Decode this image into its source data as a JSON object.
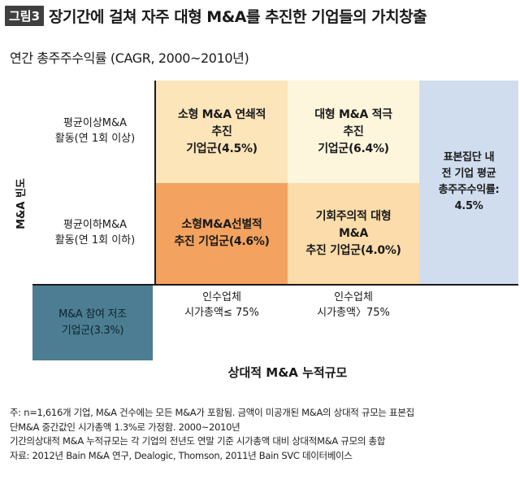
{
  "figure": {
    "badge": "그림3",
    "title": "장기간에 걸쳐 자주 대형 M&A를 추진한 기업들의 가치창출",
    "subtitle": "연간 총주주수익률 (CAGR, 2000~2010년)"
  },
  "axes": {
    "y_label": "M&A 빈도",
    "x_label": "상대적 M&A 누적규모"
  },
  "rows": {
    "top": [
      "평균이상M&A",
      "활동(연 1회 이상)"
    ],
    "bottom": [
      "평균이하M&A",
      "활동(연 1회 이하)"
    ]
  },
  "columns": {
    "left": [
      "인수업체",
      "시가총액≤ 75%"
    ],
    "right": [
      "인수업체",
      "시가총액〉75%"
    ]
  },
  "cells": {
    "small_frequent": [
      "소형 M&A 연쇄적",
      "추진",
      "기업군(4.5%)"
    ],
    "large_frequent": [
      "대형 M&A 적극",
      "추진",
      "기업군(6.4%)"
    ],
    "small_selective": [
      "소형M&A선별적",
      "추진 기업군(4.6%)"
    ],
    "large_opportunistic": [
      "기회주의적 대형",
      "M&A",
      "추진 기업군(4.0%)"
    ],
    "sample": [
      "표본집단 내",
      "전 기업 평균",
      "총주주수익률:",
      "4.5%"
    ],
    "low": [
      "M&A 참여 저조",
      "기업군(3.3%)"
    ]
  },
  "footnote": [
    "주: n=1,616개 기업, M&A 건수에는 모든 M&A가 포함됨. 금액이 미공개된 M&A의 상대적 규모는 표본집",
    "단M&A 중간값인 시가총액 1.3%로 가정함. 2000~2010년",
    "기간의상대적 M&A 누적규모는 각 기업의 전년도 연말 기준 시가총액 대비 상대적M&A 규모의 총합",
    "자료: 2012년 Bain M&A 연구, Dealogic, Thomson, 2011년 Bain SVC 데이터베이스"
  ],
  "colors": {
    "cell_small_frequent": "#fce5b9",
    "cell_large_frequent": "#fef6dc",
    "cell_small_selective": "#f3a35f",
    "cell_large_opportunistic": "#fbdcaa",
    "cell_sample": "#d0ddee",
    "cell_low": "#4c7d92"
  }
}
